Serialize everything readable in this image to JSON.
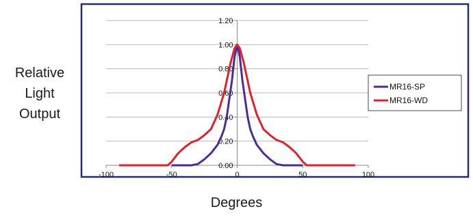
{
  "chart_data": {
    "type": "line",
    "title": "",
    "ylabel_lines": [
      "Relative",
      "Light",
      "Output"
    ],
    "xlabel": "Degrees",
    "xlim": [
      -100,
      100
    ],
    "ylim": [
      0,
      1.2
    ],
    "x_ticks": [
      -100,
      -50,
      0,
      50,
      100
    ],
    "x_tick_labels": [
      "-100",
      "-50",
      "0",
      "50",
      "100"
    ],
    "y_ticks": [
      0,
      0.2,
      0.4,
      0.6,
      0.8,
      1.0,
      1.2
    ],
    "y_tick_labels": [
      "0.00",
      "0.20",
      "0.40",
      "0.60",
      "0.80",
      "1.00",
      "1.20"
    ],
    "grid": true,
    "legend_position": "right",
    "series": [
      {
        "name": "MR16-SP",
        "color": "#4b2a9a",
        "points": [
          [
            -50,
            0
          ],
          [
            -35,
            0
          ],
          [
            -30,
            0.01
          ],
          [
            -25,
            0.05
          ],
          [
            -20,
            0.1
          ],
          [
            -15,
            0.17
          ],
          [
            -12,
            0.24
          ],
          [
            -10,
            0.3
          ],
          [
            -8,
            0.4
          ],
          [
            -6,
            0.55
          ],
          [
            -4,
            0.7
          ],
          [
            -2,
            0.9
          ],
          [
            0,
            1.0
          ],
          [
            2,
            0.9
          ],
          [
            4,
            0.7
          ],
          [
            6,
            0.55
          ],
          [
            8,
            0.4
          ],
          [
            10,
            0.3
          ],
          [
            12,
            0.24
          ],
          [
            15,
            0.17
          ],
          [
            20,
            0.1
          ],
          [
            25,
            0.05
          ],
          [
            30,
            0.01
          ],
          [
            35,
            0
          ],
          [
            50,
            0
          ]
        ]
      },
      {
        "name": "MR16-WD",
        "color": "#e0202a",
        "points": [
          [
            -90,
            0
          ],
          [
            -53,
            0
          ],
          [
            -50,
            0.03
          ],
          [
            -45,
            0.1
          ],
          [
            -40,
            0.15
          ],
          [
            -35,
            0.19
          ],
          [
            -30,
            0.21
          ],
          [
            -25,
            0.25
          ],
          [
            -20,
            0.3
          ],
          [
            -15,
            0.42
          ],
          [
            -10,
            0.6
          ],
          [
            -5,
            0.85
          ],
          [
            -2,
            0.97
          ],
          [
            0,
            1.0
          ],
          [
            2,
            0.97
          ],
          [
            5,
            0.85
          ],
          [
            10,
            0.6
          ],
          [
            15,
            0.42
          ],
          [
            20,
            0.3
          ],
          [
            25,
            0.25
          ],
          [
            30,
            0.21
          ],
          [
            35,
            0.19
          ],
          [
            40,
            0.15
          ],
          [
            45,
            0.1
          ],
          [
            50,
            0.03
          ],
          [
            53,
            0
          ],
          [
            90,
            0
          ]
        ]
      }
    ]
  }
}
